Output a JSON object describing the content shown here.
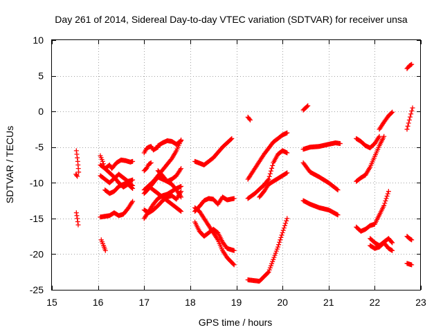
{
  "chart_data": {
    "type": "scatter",
    "title": "Day 261 of 2014, Sidereal Day-to-day VTEC variation (SDTVAR) for receiver unsa",
    "xlabel": "GPS time / hours",
    "ylabel": "SDTVAR / TECUs",
    "xlim": [
      15,
      23
    ],
    "ylim": [
      -25,
      10
    ],
    "xticks": [
      "15",
      "16",
      "17",
      "18",
      "19",
      "20",
      "21",
      "22",
      "23"
    ],
    "yticks": [
      "-25",
      "-20",
      "-15",
      "-10",
      "-5",
      "0",
      "5",
      "10"
    ],
    "grid": true,
    "marker": "plus",
    "color": "#ff0000",
    "series": [
      {
        "name": "s01",
        "x": [
          15.53,
          15.56,
          15.58
        ],
        "y": [
          -5.5,
          -7.0,
          -8.5
        ]
      },
      {
        "name": "s02",
        "x": [
          15.52,
          15.55
        ],
        "y": [
          -8.8,
          -9.1
        ]
      },
      {
        "name": "s03",
        "x": [
          15.53,
          15.55,
          15.57
        ],
        "y": [
          -14.2,
          -15.0,
          -15.9
        ]
      },
      {
        "name": "s04",
        "x": [
          16.07,
          16.12,
          16.16
        ],
        "y": [
          -18.0,
          -18.8,
          -19.5
        ]
      },
      {
        "name": "s05",
        "x": [
          16.05,
          16.15,
          16.25,
          16.35,
          16.45,
          16.55,
          16.65,
          16.75
        ],
        "y": [
          -14.8,
          -14.7,
          -14.6,
          -14.2,
          -14.6,
          -14.4,
          -13.6,
          -12.6
        ]
      },
      {
        "name": "s06",
        "x": [
          16.05,
          16.1,
          16.15,
          16.25,
          16.3,
          16.4,
          16.5,
          16.6,
          16.7,
          16.75
        ],
        "y": [
          -6.2,
          -7.0,
          -8.0,
          -7.5,
          -8.0,
          -7.2,
          -6.8,
          -6.9,
          -7.1,
          -7.0
        ]
      },
      {
        "name": "s07",
        "x": [
          16.05,
          16.15,
          16.25,
          16.35,
          16.45,
          16.55,
          16.65,
          16.75
        ],
        "y": [
          -9.0,
          -9.5,
          -10.0,
          -9.4,
          -8.8,
          -9.3,
          -9.8,
          -9.6
        ]
      },
      {
        "name": "s08",
        "x": [
          16.05,
          16.15,
          16.25,
          16.35,
          16.45,
          16.55,
          16.65,
          16.75
        ],
        "y": [
          -7.5,
          -8.0,
          -8.6,
          -9.2,
          -10.0,
          -10.6,
          -10.2,
          -10.8
        ]
      },
      {
        "name": "s09",
        "x": [
          16.15,
          16.25,
          16.35,
          16.45,
          16.55,
          16.65,
          16.75
        ],
        "y": [
          -11.0,
          -11.5,
          -11.2,
          -10.5,
          -10.2,
          -10.0,
          -10.4
        ]
      },
      {
        "name": "s10",
        "x": [
          17.0,
          17.05,
          17.1,
          17.15,
          17.2,
          17.3
        ],
        "y": [
          -5.8,
          -5.2,
          -5.0,
          -4.9,
          -5.4,
          -5.0
        ]
      },
      {
        "name": "s11",
        "x": [
          17.3,
          17.4,
          17.5,
          17.6,
          17.7,
          17.8
        ],
        "y": [
          -4.8,
          -4.4,
          -4.1,
          -4.2,
          -4.6,
          -4.1
        ]
      },
      {
        "name": "s12",
        "x": [
          17.0,
          17.05,
          17.1,
          17.15
        ],
        "y": [
          -8.3,
          -8.0,
          -7.4,
          -7.2
        ]
      },
      {
        "name": "s13",
        "x": [
          17.0,
          17.1,
          17.2,
          17.3,
          17.4,
          17.5,
          17.6,
          17.7,
          17.8
        ],
        "y": [
          -11.0,
          -10.4,
          -9.8,
          -9.0,
          -8.2,
          -7.4,
          -6.6,
          -5.5,
          -4.0
        ]
      },
      {
        "name": "s14",
        "x": [
          17.0,
          17.1,
          17.2,
          17.3,
          17.4,
          17.5,
          17.6,
          17.7,
          17.8
        ],
        "y": [
          -11.5,
          -10.8,
          -10.0,
          -9.2,
          -9.5,
          -9.8,
          -9.5,
          -9.0,
          -8.0
        ]
      },
      {
        "name": "s15",
        "x": [
          17.0,
          17.1,
          17.2,
          17.3,
          17.4,
          17.5,
          17.6,
          17.7,
          17.8
        ],
        "y": [
          -15.0,
          -14.0,
          -13.0,
          -12.2,
          -11.8,
          -11.6,
          -11.2,
          -10.8,
          -10.5
        ]
      },
      {
        "name": "s16",
        "x": [
          17.0,
          17.1,
          17.2,
          17.3,
          17.4,
          17.5,
          17.6,
          17.7,
          17.8
        ],
        "y": [
          -13.8,
          -14.2,
          -13.8,
          -13.2,
          -12.5,
          -12.0,
          -11.8,
          -12.3,
          -11.2
        ]
      },
      {
        "name": "s17",
        "x": [
          17.1,
          17.2,
          17.3,
          17.4,
          17.5,
          17.6,
          17.7,
          17.8
        ],
        "y": [
          -10.5,
          -11.0,
          -11.5,
          -12.0,
          -12.5,
          -13.0,
          -13.5,
          -14.0
        ]
      },
      {
        "name": "s18",
        "x": [
          17.3,
          17.4,
          17.5,
          17.6,
          17.7,
          17.8
        ],
        "y": [
          -8.3,
          -9.0,
          -9.8,
          -10.2,
          -11.0,
          -12.0
        ]
      },
      {
        "name": "s19",
        "x": [
          18.1,
          18.3,
          18.5,
          18.7,
          18.9
        ],
        "y": [
          -7.0,
          -7.5,
          -6.5,
          -5.0,
          -3.8
        ]
      },
      {
        "name": "s20",
        "x": [
          18.1,
          18.2,
          18.3,
          18.4,
          18.5,
          18.6,
          18.7,
          18.8,
          18.95
        ],
        "y": [
          -14.0,
          -13.3,
          -12.5,
          -12.2,
          -12.3,
          -13.0,
          -12.0,
          -12.4,
          -12.2
        ]
      },
      {
        "name": "s21",
        "x": [
          18.1,
          18.2,
          18.3,
          18.4,
          18.5,
          18.6,
          18.7,
          18.8,
          18.95
        ],
        "y": [
          -15.5,
          -16.8,
          -17.5,
          -17.0,
          -16.5,
          -17.0,
          -18.3,
          -19.2,
          -19.5
        ]
      },
      {
        "name": "s22",
        "x": [
          18.1,
          18.2,
          18.3,
          18.4,
          18.5,
          18.6,
          18.7,
          18.8,
          18.95
        ],
        "y": [
          -13.5,
          -14.0,
          -15.0,
          -16.0,
          -17.0,
          -18.0,
          -19.5,
          -20.5,
          -21.5
        ]
      },
      {
        "name": "s23",
        "x": [
          19.25,
          19.3
        ],
        "y": [
          -0.8,
          -1.2
        ]
      },
      {
        "name": "s24",
        "x": [
          19.25,
          19.4,
          19.6,
          19.8,
          20.0,
          20.1
        ],
        "y": [
          -9.5,
          -8.0,
          -6.0,
          -4.3,
          -3.3,
          -3.0
        ]
      },
      {
        "name": "s25",
        "x": [
          19.25,
          19.4,
          19.6,
          19.7,
          19.8,
          19.9,
          20.0,
          20.1
        ],
        "y": [
          -12.2,
          -11.5,
          -10.3,
          -9.5,
          -7.2,
          -6.0,
          -5.5,
          -5.8
        ]
      },
      {
        "name": "s26",
        "x": [
          19.25,
          19.5,
          19.7,
          19.9,
          20.1
        ],
        "y": [
          -23.6,
          -23.8,
          -22.5,
          -19.0,
          -15.0
        ]
      },
      {
        "name": "s27",
        "x": [
          19.5,
          19.6,
          19.7,
          19.8,
          20.0,
          20.1
        ],
        "y": [
          -12.0,
          -11.2,
          -10.2,
          -9.8,
          -9.0,
          -8.6
        ]
      },
      {
        "name": "s28",
        "x": [
          20.45,
          20.5,
          20.55
        ],
        "y": [
          0.2,
          0.5,
          0.8
        ]
      },
      {
        "name": "s29",
        "x": [
          20.45,
          20.6,
          20.8,
          21.0,
          21.15,
          21.25
        ],
        "y": [
          -5.3,
          -5.0,
          -4.9,
          -4.6,
          -4.4,
          -4.5
        ]
      },
      {
        "name": "s30",
        "x": [
          20.45,
          20.6,
          20.8,
          21.0,
          21.2
        ],
        "y": [
          -7.2,
          -8.5,
          -9.2,
          -10.0,
          -11.0
        ]
      },
      {
        "name": "s31",
        "x": [
          20.45,
          20.6,
          20.8,
          21.0,
          21.2
        ],
        "y": [
          -12.5,
          -13.0,
          -13.5,
          -13.8,
          -14.5
        ]
      },
      {
        "name": "s32",
        "x": [
          21.6,
          21.7,
          21.8,
          21.9,
          22.0,
          22.1
        ],
        "y": [
          -3.8,
          -4.2,
          -4.8,
          -5.1,
          -4.5,
          -3.5
        ]
      },
      {
        "name": "s33",
        "x": [
          22.1,
          22.2,
          22.3,
          22.38
        ],
        "y": [
          -2.5,
          -1.5,
          -0.6,
          -0.1
        ]
      },
      {
        "name": "s34",
        "x": [
          21.6,
          21.7,
          21.8,
          21.9,
          22.0,
          22.1,
          22.2
        ],
        "y": [
          -9.8,
          -9.3,
          -8.9,
          -7.8,
          -6.3,
          -4.8,
          -3.5
        ]
      },
      {
        "name": "s35",
        "x": [
          21.6,
          21.7,
          21.8,
          21.9,
          22.0,
          22.1,
          22.2,
          22.3
        ],
        "y": [
          -16.2,
          -16.8,
          -16.5,
          -16.0,
          -15.8,
          -14.5,
          -13.2,
          -11.2
        ]
      },
      {
        "name": "s36",
        "x": [
          21.9,
          22.0,
          22.1,
          22.2,
          22.3,
          22.38
        ],
        "y": [
          -17.8,
          -18.4,
          -18.8,
          -18.3,
          -17.8,
          -18.4
        ]
      },
      {
        "name": "s37",
        "x": [
          21.9,
          22.0,
          22.1,
          22.2,
          22.3,
          22.38
        ],
        "y": [
          -18.8,
          -19.2,
          -19.0,
          -18.4,
          -19.2,
          -19.5
        ]
      },
      {
        "name": "s38",
        "x": [
          22.7,
          22.75,
          22.8
        ],
        "y": [
          -17.5,
          -17.8,
          -18.0
        ]
      },
      {
        "name": "s39",
        "x": [
          22.7,
          22.8
        ],
        "y": [
          -21.3,
          -21.5
        ]
      },
      {
        "name": "s40",
        "x": [
          22.7,
          22.75,
          22.8
        ],
        "y": [
          6.0,
          6.4,
          6.6
        ]
      },
      {
        "name": "s41",
        "x": [
          22.7,
          22.75,
          22.82
        ],
        "y": [
          -2.5,
          -1.2,
          0.5
        ]
      }
    ]
  }
}
